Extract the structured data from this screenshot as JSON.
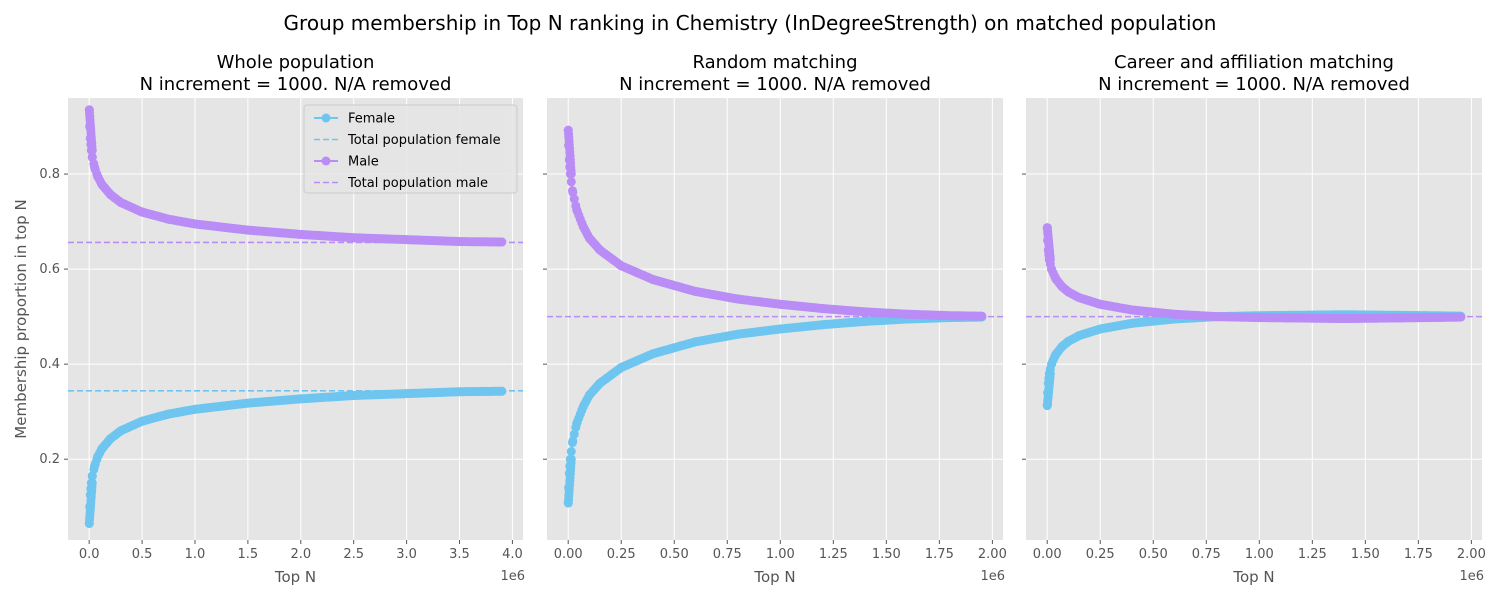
{
  "figure": {
    "title": "Group membership in Top N ranking in Chemistry (InDegreeStrength) on matched population"
  },
  "colors": {
    "female": "#6ec6f0",
    "male": "#b98cf6",
    "panel_bg": "#e5e5e5",
    "grid": "#ffffff"
  },
  "chart_data": [
    {
      "type": "scatter",
      "title_lines": [
        "Whole population",
        "N increment = 1000. N/A removed"
      ],
      "xlabel": "Top N",
      "ylabel": "Membership proportion in top N",
      "x_offset_label": "1e6",
      "xlim": [
        -0.2,
        4.1
      ],
      "ylim": [
        0.03,
        0.96
      ],
      "xticks": [
        0.0,
        0.5,
        1.0,
        1.5,
        2.0,
        2.5,
        3.0,
        3.5,
        4.0
      ],
      "xtick_labels": [
        "0.0",
        "0.5",
        "1.0",
        "1.5",
        "2.0",
        "2.5",
        "3.0",
        "3.5",
        "4.0"
      ],
      "yticks": [
        0.2,
        0.4,
        0.6,
        0.8
      ],
      "ytick_labels": [
        "0.2",
        "0.4",
        "0.6",
        "0.8"
      ],
      "grid": true,
      "legend_position": "top-right",
      "series": [
        {
          "name": "Female",
          "color_key": "female",
          "style": "marker-line",
          "x": [
            0.001,
            0.005,
            0.01,
            0.02,
            0.03,
            0.05,
            0.08,
            0.12,
            0.2,
            0.3,
            0.5,
            0.75,
            1.0,
            1.5,
            2.0,
            2.5,
            3.0,
            3.5,
            3.9
          ],
          "y": [
            0.065,
            0.1,
            0.125,
            0.15,
            0.165,
            0.185,
            0.205,
            0.222,
            0.243,
            0.26,
            0.28,
            0.295,
            0.305,
            0.318,
            0.327,
            0.334,
            0.338,
            0.342,
            0.343
          ]
        },
        {
          "name": "Total population female",
          "color_key": "female",
          "style": "hline",
          "y": 0.344
        },
        {
          "name": "Male",
          "color_key": "male",
          "style": "marker-line",
          "x": [
            0.001,
            0.005,
            0.01,
            0.02,
            0.03,
            0.05,
            0.08,
            0.12,
            0.2,
            0.3,
            0.5,
            0.75,
            1.0,
            1.5,
            2.0,
            2.5,
            3.0,
            3.5,
            3.9
          ],
          "y": [
            0.935,
            0.9,
            0.875,
            0.85,
            0.835,
            0.815,
            0.795,
            0.778,
            0.757,
            0.74,
            0.72,
            0.705,
            0.695,
            0.682,
            0.673,
            0.666,
            0.662,
            0.658,
            0.657
          ]
        },
        {
          "name": "Total population male",
          "color_key": "male",
          "style": "hline",
          "y": 0.656
        }
      ]
    },
    {
      "type": "scatter",
      "title_lines": [
        "Random matching",
        "N increment = 1000. N/A removed"
      ],
      "xlabel": "Top N",
      "x_offset_label": "1e6",
      "xlim": [
        -0.1,
        2.05
      ],
      "ylim": [
        0.03,
        0.96
      ],
      "xticks": [
        0.0,
        0.25,
        0.5,
        0.75,
        1.0,
        1.25,
        1.5,
        1.75,
        2.0
      ],
      "xtick_labels": [
        "0.00",
        "0.25",
        "0.50",
        "0.75",
        "1.00",
        "1.25",
        "1.50",
        "1.75",
        "2.00"
      ],
      "yticks": [
        0.2,
        0.4,
        0.6,
        0.8
      ],
      "grid": true,
      "series": [
        {
          "name": "Female",
          "color_key": "female",
          "style": "marker-line",
          "x": [
            0.0005,
            0.002,
            0.005,
            0.01,
            0.02,
            0.04,
            0.07,
            0.1,
            0.15,
            0.25,
            0.4,
            0.6,
            0.8,
            1.0,
            1.2,
            1.4,
            1.6,
            1.8,
            1.95
          ],
          "y": [
            0.108,
            0.14,
            0.17,
            0.2,
            0.235,
            0.275,
            0.31,
            0.335,
            0.36,
            0.393,
            0.422,
            0.447,
            0.463,
            0.474,
            0.483,
            0.49,
            0.495,
            0.498,
            0.499
          ]
        },
        {
          "name": "Male",
          "color_key": "male",
          "style": "marker-line",
          "x": [
            0.0005,
            0.002,
            0.005,
            0.01,
            0.02,
            0.04,
            0.07,
            0.1,
            0.15,
            0.25,
            0.4,
            0.6,
            0.8,
            1.0,
            1.2,
            1.4,
            1.6,
            1.8,
            1.95
          ],
          "y": [
            0.892,
            0.86,
            0.83,
            0.8,
            0.765,
            0.725,
            0.69,
            0.665,
            0.64,
            0.607,
            0.578,
            0.553,
            0.537,
            0.526,
            0.517,
            0.51,
            0.505,
            0.502,
            0.501
          ]
        },
        {
          "name": "Total population male",
          "color_key": "male",
          "style": "hline",
          "y": 0.5
        }
      ]
    },
    {
      "type": "scatter",
      "title_lines": [
        "Career and affiliation matching",
        "N increment = 1000. N/A removed"
      ],
      "xlabel": "Top N",
      "x_offset_label": "1e6",
      "xlim": [
        -0.1,
        2.05
      ],
      "ylim": [
        0.03,
        0.96
      ],
      "xticks": [
        0.0,
        0.25,
        0.5,
        0.75,
        1.0,
        1.25,
        1.5,
        1.75,
        2.0
      ],
      "xtick_labels": [
        "0.00",
        "0.25",
        "0.50",
        "0.75",
        "1.00",
        "1.25",
        "1.50",
        "1.75",
        "2.00"
      ],
      "yticks": [
        0.2,
        0.4,
        0.6,
        0.8
      ],
      "grid": true,
      "series": [
        {
          "name": "Female",
          "color_key": "female",
          "style": "marker-line",
          "x": [
            0.0005,
            0.002,
            0.005,
            0.01,
            0.02,
            0.04,
            0.07,
            0.1,
            0.15,
            0.25,
            0.4,
            0.6,
            0.8,
            1.0,
            1.2,
            1.4,
            1.6,
            1.8,
            1.95
          ],
          "y": [
            0.313,
            0.34,
            0.36,
            0.38,
            0.4,
            0.42,
            0.437,
            0.448,
            0.46,
            0.474,
            0.486,
            0.495,
            0.5,
            0.502,
            0.503,
            0.504,
            0.503,
            0.502,
            0.501
          ]
        },
        {
          "name": "Male",
          "color_key": "male",
          "style": "marker-line",
          "x": [
            0.0005,
            0.002,
            0.005,
            0.01,
            0.02,
            0.04,
            0.07,
            0.1,
            0.15,
            0.25,
            0.4,
            0.6,
            0.8,
            1.0,
            1.2,
            1.4,
            1.6,
            1.8,
            1.95
          ],
          "y": [
            0.687,
            0.66,
            0.64,
            0.62,
            0.6,
            0.58,
            0.563,
            0.552,
            0.54,
            0.526,
            0.514,
            0.505,
            0.5,
            0.498,
            0.497,
            0.496,
            0.497,
            0.498,
            0.499
          ]
        },
        {
          "name": "Total population male",
          "color_key": "male",
          "style": "hline",
          "y": 0.5
        }
      ]
    }
  ]
}
